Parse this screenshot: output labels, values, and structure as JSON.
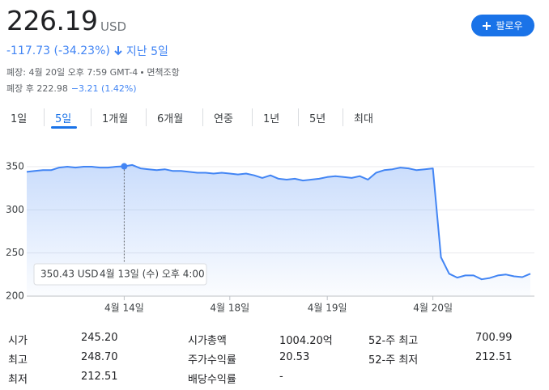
{
  "header": {
    "price": "226.19",
    "currency": "USD",
    "change": "-117.73 (-34.23%)",
    "period": "지난 5일",
    "close_time": "폐장: 4월 20일 오후 7:59 GMT-4",
    "disclaimer": "면책조항",
    "after_hours": "폐장 후 222.98",
    "after_change": "−3.21 (1.42%)",
    "follow": "팔로우"
  },
  "tabs": {
    "items": [
      "1일",
      "5일",
      "1개월",
      "6개월",
      "연중",
      "1년",
      "5년",
      "최대"
    ],
    "selected": "5일"
  },
  "chart_data": {
    "type": "line",
    "categories": [
      null,
      null,
      null,
      null,
      null,
      null,
      null,
      null,
      null,
      null,
      null,
      null,
      "4월 14일",
      null,
      null,
      null,
      null,
      null,
      null,
      null,
      null,
      null,
      null,
      null,
      null,
      "4월 18일",
      null,
      null,
      null,
      null,
      null,
      null,
      null,
      null,
      null,
      null,
      null,
      "4월 19일",
      null,
      null,
      null,
      null,
      null,
      null,
      null,
      null,
      null,
      null,
      null,
      null,
      "4월 20일",
      null,
      null,
      null,
      null,
      null,
      null,
      null,
      null,
      null,
      null,
      null,
      null
    ],
    "series": [
      {
        "color": "#4285f4",
        "values": [
          344,
          345,
          346,
          346,
          349,
          350,
          349,
          350,
          350,
          349,
          349,
          350,
          350.43,
          352,
          348,
          347,
          346,
          347,
          345,
          345,
          344,
          343,
          343,
          342,
          343,
          342,
          341,
          342,
          340,
          337,
          340,
          336,
          335,
          336,
          334,
          335,
          336,
          338,
          339,
          338,
          337,
          339,
          335,
          343,
          346,
          347,
          349,
          348,
          346,
          347,
          348,
          245,
          226,
          221.5,
          224,
          224,
          219.5,
          221,
          224,
          225,
          223,
          222,
          226
        ]
      }
    ],
    "ylim": [
      200,
      365
    ],
    "yticks": [
      200,
      250,
      300,
      350
    ],
    "grid": true,
    "tooltip": {
      "value": 350.43,
      "label": "350.43 USD",
      "time": "4월 13일 (수) 오후 4:00"
    }
  },
  "stats": {
    "columns": [
      [
        [
          "시가",
          "245.20"
        ],
        [
          "최고",
          "248.70"
        ],
        [
          "최저",
          "212.51"
        ]
      ],
      [
        [
          "시가총액",
          "1004.20억"
        ],
        [
          "주가수익률",
          "20.53"
        ],
        [
          "배당수익률",
          "-"
        ]
      ],
      [
        [
          "52-주 최고",
          "700.99"
        ],
        [
          "52-주 최저",
          "212.51"
        ]
      ]
    ]
  }
}
